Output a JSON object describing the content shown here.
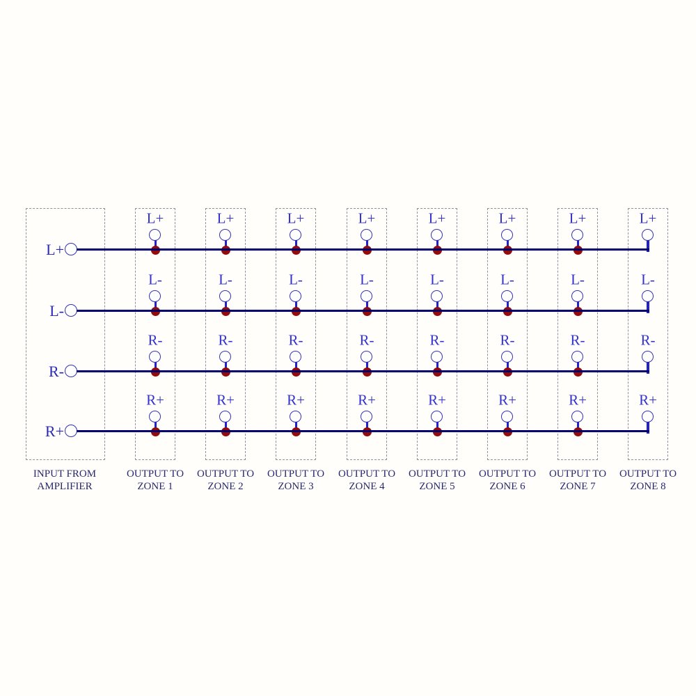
{
  "input": {
    "terminals": [
      "L+",
      "L-",
      "R-",
      "R+"
    ],
    "caption": [
      "INPUT FROM",
      "AMPLIFIER"
    ]
  },
  "zones": [
    {
      "terminals": [
        "L+",
        "L-",
        "R-",
        "R+"
      ],
      "caption": [
        "OUTPUT TO",
        "ZONE 1"
      ]
    },
    {
      "terminals": [
        "L+",
        "L-",
        "R-",
        "R+"
      ],
      "caption": [
        "OUTPUT TO",
        "ZONE 2"
      ]
    },
    {
      "terminals": [
        "L+",
        "L-",
        "R-",
        "R+"
      ],
      "caption": [
        "OUTPUT TO",
        "ZONE 3"
      ]
    },
    {
      "terminals": [
        "L+",
        "L-",
        "R-",
        "R+"
      ],
      "caption": [
        "OUTPUT TO",
        "ZONE 4"
      ]
    },
    {
      "terminals": [
        "L+",
        "L-",
        "R-",
        "R+"
      ],
      "caption": [
        "OUTPUT TO",
        "ZONE 5"
      ]
    },
    {
      "terminals": [
        "L+",
        "L-",
        "R-",
        "R+"
      ],
      "caption": [
        "OUTPUT TO",
        "ZONE 6"
      ]
    },
    {
      "terminals": [
        "L+",
        "L-",
        "R-",
        "R+"
      ],
      "caption": [
        "OUTPUT TO",
        "ZONE 7"
      ]
    },
    {
      "terminals": [
        "L+",
        "L-",
        "R-",
        "R+"
      ],
      "caption": [
        "OUTPUT TO",
        "ZONE 8"
      ]
    }
  ],
  "colors": {
    "bus": "#000070",
    "terminal_label": "#3333cc",
    "input_label": "#2a2ab8",
    "caption": "#27276b",
    "circle_stroke": "#3232b4",
    "stub": "#2222cc",
    "junction_dot": "#920c0c",
    "box_border": "#8f8f9f",
    "background": "#fffefb"
  }
}
